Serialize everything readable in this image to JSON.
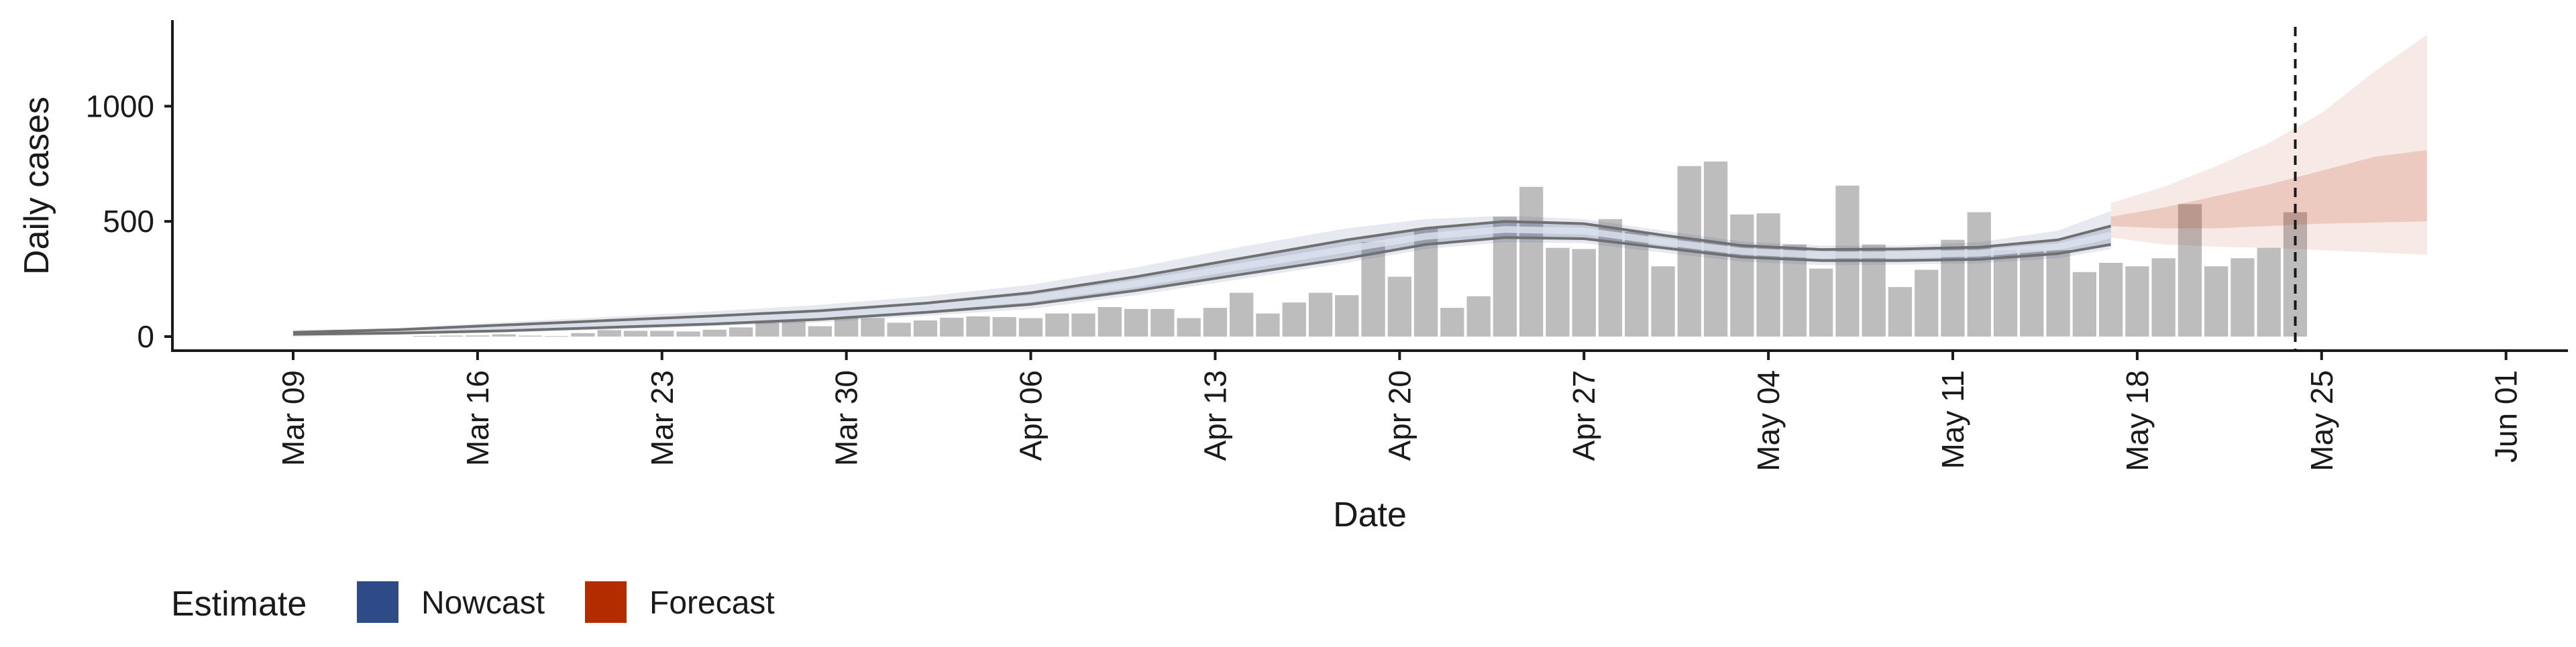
{
  "chart_data": {
    "type": "bar",
    "xlabel": "Date",
    "ylabel": "Daily cases",
    "ylim": [
      -60,
      1320
    ],
    "yticks": [
      0,
      500,
      1000
    ],
    "x_start": "Mar 09",
    "x_end": "Jun 01",
    "xticks": [
      "Mar 09",
      "Mar 16",
      "Mar 23",
      "Mar 30",
      "Apr 06",
      "Apr 13",
      "Apr 20",
      "Apr 27",
      "May 04",
      "May 11",
      "May 18",
      "May 25",
      "Jun 01"
    ],
    "bar_color": "#bdbdbd",
    "bars": {
      "dates": [
        "Mar 14",
        "Mar 15",
        "Mar 16",
        "Mar 17",
        "Mar 18",
        "Mar 19",
        "Mar 20",
        "Mar 21",
        "Mar 22",
        "Mar 23",
        "Mar 24",
        "Mar 25",
        "Mar 26",
        "Mar 27",
        "Mar 28",
        "Mar 29",
        "Mar 30",
        "Mar 31",
        "Apr 01",
        "Apr 02",
        "Apr 03",
        "Apr 04",
        "Apr 05",
        "Apr 06",
        "Apr 07",
        "Apr 08",
        "Apr 09",
        "Apr 10",
        "Apr 11",
        "Apr 12",
        "Apr 13",
        "Apr 14",
        "Apr 15",
        "Apr 16",
        "Apr 17",
        "Apr 18",
        "Apr 19",
        "Apr 20",
        "Apr 21",
        "Apr 22",
        "Apr 23",
        "Apr 24",
        "Apr 25",
        "Apr 26",
        "Apr 27",
        "Apr 28",
        "Apr 29",
        "Apr 30",
        "May 01",
        "May 02",
        "May 03",
        "May 04",
        "May 05",
        "May 06",
        "May 07",
        "May 08",
        "May 09",
        "May 10",
        "May 11",
        "May 12",
        "May 13",
        "May 14",
        "May 15",
        "May 16",
        "May 17",
        "May 18",
        "May 19",
        "May 20",
        "May 21",
        "May 22",
        "May 23",
        "May 24"
      ],
      "values": [
        3,
        4,
        5,
        10,
        4,
        2,
        15,
        28,
        25,
        25,
        22,
        30,
        40,
        60,
        65,
        45,
        82,
        80,
        60,
        70,
        82,
        88,
        85,
        80,
        100,
        100,
        128,
        120,
        120,
        80,
        125,
        190,
        100,
        148,
        190,
        180,
        410,
        260,
        470,
        125,
        175,
        520,
        650,
        385,
        380,
        510,
        455,
        305,
        740,
        760,
        530,
        535,
        400,
        295,
        655,
        400,
        215,
        290,
        420,
        540,
        375,
        375,
        375,
        280,
        320,
        305,
        340,
        575,
        305,
        340,
        385,
        540
      ]
    },
    "nowcast": {
      "name": "Nowcast",
      "color": "#2E4A87",
      "dates": [
        "Mar 09",
        "Mar 13",
        "Mar 17",
        "Mar 21",
        "Mar 25",
        "Mar 29",
        "Apr 02",
        "Apr 06",
        "Apr 10",
        "Apr 14",
        "Apr 18",
        "Apr 21",
        "Apr 24",
        "Apr 27",
        "Apr 30",
        "May 03",
        "May 06",
        "May 09",
        "May 12",
        "May 15",
        "May 17"
      ],
      "upper": [
        18,
        30,
        50,
        70,
        90,
        112,
        145,
        190,
        260,
        340,
        420,
        470,
        500,
        490,
        440,
        395,
        378,
        380,
        388,
        420,
        480
      ],
      "upper_outer": [
        24,
        38,
        62,
        86,
        110,
        138,
        175,
        225,
        300,
        390,
        470,
        510,
        525,
        510,
        460,
        412,
        395,
        395,
        410,
        460,
        545
      ],
      "lower": [
        10,
        15,
        25,
        40,
        55,
        75,
        105,
        140,
        200,
        270,
        340,
        400,
        430,
        425,
        385,
        345,
        330,
        330,
        335,
        360,
        400
      ],
      "lower_outer": [
        5,
        10,
        18,
        30,
        45,
        62,
        90,
        120,
        180,
        250,
        320,
        380,
        410,
        405,
        365,
        325,
        310,
        312,
        318,
        340,
        380
      ],
      "median": [
        14,
        22,
        37,
        55,
        72,
        93,
        125,
        165,
        230,
        305,
        380,
        435,
        465,
        458,
        412,
        370,
        354,
        355,
        362,
        390,
        440
      ]
    },
    "forecast": {
      "name": "Forecast",
      "color": "#B22C00",
      "dates": [
        "May 17",
        "May 19",
        "May 21",
        "May 23",
        "May 25",
        "May 27",
        "May 29"
      ],
      "outer_upper": [
        580,
        650,
        740,
        840,
        970,
        1150,
        1310
      ],
      "outer_lower": [
        430,
        400,
        390,
        385,
        375,
        365,
        355
      ],
      "inner_upper": [
        520,
        560,
        610,
        660,
        720,
        780,
        810
      ],
      "inner_lower": [
        480,
        470,
        470,
        480,
        490,
        495,
        500
      ]
    },
    "vline_date": "May 24",
    "legend": {
      "title": "Estimate",
      "position": "bottom-left",
      "items": [
        {
          "label": "Nowcast",
          "color": "#2E4A87"
        },
        {
          "label": "Forecast",
          "color": "#B22C00"
        }
      ]
    }
  }
}
